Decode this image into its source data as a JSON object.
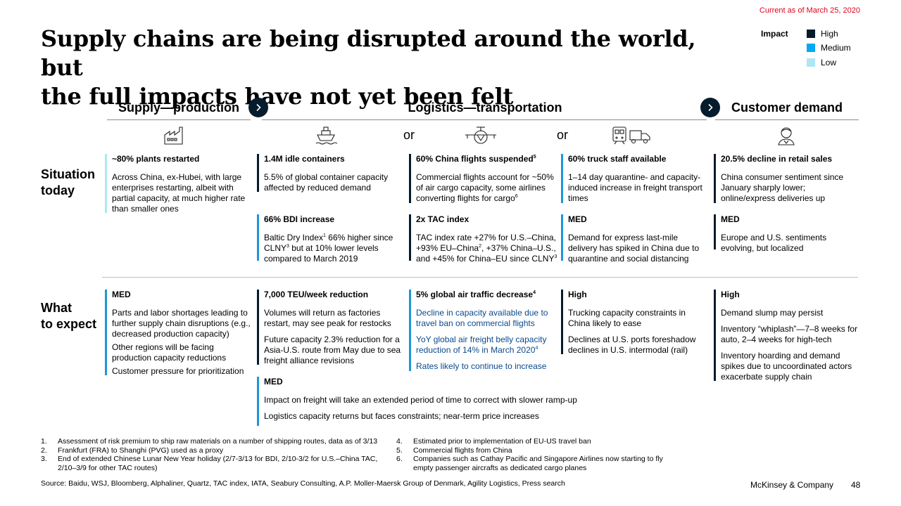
{
  "header": {
    "date": "Current as of March 25, 2020",
    "title_line1": "Supply chains are being disrupted around the world, but",
    "title_line2": "the full impacts have not yet been felt"
  },
  "legend": {
    "label": "Impact",
    "items": [
      {
        "label": "High",
        "color": "#051c2c"
      },
      {
        "label": "Medium",
        "color": "#00a9f4"
      },
      {
        "label": "Low",
        "color": "#aee6f4"
      }
    ]
  },
  "columns": {
    "supply": "Supply—production",
    "logistics": "Logistics—transportation",
    "demand": "Customer demand",
    "or1": "or",
    "or2": "or",
    "icons": [
      "factory-icon",
      "cargo-ship-icon",
      "cargo-plane-icon",
      "train-truck-icon",
      "customer-icon"
    ]
  },
  "rows": {
    "situation_line1": "Situation",
    "situation_line2": "today",
    "expect_line1": "What",
    "expect_line2": "to expect"
  },
  "situation": {
    "supply": {
      "heading": "~80% plants restarted",
      "body": "Across China, ex-Hubei, with large enterprises restarting, albeit with partial capacity, at much higher rate than smaller ones"
    },
    "ship1": {
      "heading": "1.4M idle containers",
      "body": "5.5% of global container capacity affected by reduced demand"
    },
    "ship2": {
      "heading": "66% BDI increase",
      "body_a": "Baltic Dry Index",
      "sup_a": "1",
      "body_b": " 66% higher since CLNY",
      "sup_b": "3",
      "body_c": " but at 10% lower levels compared to March 2019"
    },
    "air1": {
      "heading": "60% China flights suspended",
      "heading_sup": "5",
      "body": "Commercial flights account for ~50% of air cargo capacity, some airlines converting flights for cargo",
      "body_sup": "6"
    },
    "air2": {
      "heading": "2x TAC index",
      "body_a": "TAC index rate +27% for U.S.–China, +93% EU–China",
      "sup_a": "2",
      "body_b": ", +37% China–U.S., and +45% for China–EU since CLNY",
      "sup_b": "3"
    },
    "truck1": {
      "heading": "60% truck staff available",
      "body": "1–14 day quarantine- and capacity-induced increase in freight transport times"
    },
    "truck2": {
      "heading": "MED",
      "body": "Demand for express last-mile delivery has spiked in China due to quarantine and social distancing"
    },
    "demand1": {
      "heading": "20.5% decline in retail sales",
      "body": "China consumer sentiment since January sharply lower; online/express deliveries up"
    },
    "demand2": {
      "heading": "MED",
      "body": "Europe and U.S. sentiments evolving, but localized"
    }
  },
  "expect": {
    "supply": {
      "heading": "MED",
      "p1": "Parts and labor shortages leading to further supply chain disruptions (e.g., decreased production capacity)",
      "p2": "Other regions will be facing production capacity reductions",
      "p3": "Customer pressure for prioritization"
    },
    "ship": {
      "heading": "7,000 TEU/week reduction",
      "p1": "Volumes will return as factories restart, may see peak for restocks",
      "p2": "Future capacity 2.3% reduction for a Asia-U.S. route from May due to sea freight alliance revisions"
    },
    "air": {
      "heading": "5% global air traffic decrease",
      "heading_sup": "4",
      "p1": "Decline in capacity available due to travel ban on commercial flights",
      "p2": "YoY global air freight belly capacity reduction of 14% in March 2020",
      "p2_sup": "4",
      "p3": "Rates likely to continue to increase"
    },
    "truck": {
      "heading": "High",
      "p1": "Trucking capacity constraints in China likely to ease",
      "p2": "Declines at U.S. ports foreshadow declines in U.S. intermodal (rail)"
    },
    "demand": {
      "heading": "High",
      "p1": "Demand slump may persist",
      "p2": "Inventory “whiplash”—7–8 weeks for auto, 2–4 weeks for high-tech",
      "p3": "Inventory hoarding and demand spikes due to uncoordinated actors exacerbate supply chain"
    },
    "logistics_med": {
      "heading": "MED",
      "p1": "Impact on freight will take an extended period of time to correct with slower ramp-up",
      "p2": "Logistics capacity returns but faces constraints; near-term price increases"
    }
  },
  "footnotes": [
    {
      "num": "1.",
      "text": "Assessment of risk premium to ship raw materials on a number of shipping routes, data as of 3/13"
    },
    {
      "num": "2.",
      "text": "Frankfurt  (FRA) to Shanghi (PVG) used as a proxy"
    },
    {
      "num": "3.",
      "text": "End of extended Chinese Lunar New Year holiday (2/7-3/13 for BDI, 2/10-3/2 for U.S.–China TAC, 2/10–3/9 for other TAC routes)"
    },
    {
      "num": "4.",
      "text": "Estimated prior to implementation of EU-US travel ban"
    },
    {
      "num": "5.",
      "text": "Commercial flights from China"
    },
    {
      "num": "6.",
      "text": "Companies such as Cathay Pacific and Singapore Airlines now starting to fly empty passenger aircrafts as dedicated cargo planes"
    }
  ],
  "footer": {
    "source": "Source: Baidu, WSJ, Bloomberg, Alphaliner, Quartz, TAC index, IATA, Seabury Consulting, A.P. Moller-Maersk Group of Denmark, Agility Logistics, Press search",
    "brand": "McKinsey & Company",
    "page": "48"
  }
}
